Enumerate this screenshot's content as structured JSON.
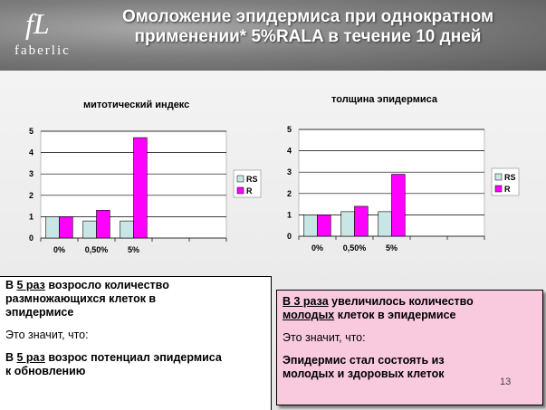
{
  "header": {
    "logo_mark": "fL",
    "logo_word": "faberlic",
    "title_line1": "Омоложение эпидермиса при однократном",
    "title_line2": "применении* 5%RALA в течение 10 дней"
  },
  "colors": {
    "rs": "#c9e6e6",
    "r": "#ff00ff",
    "pink_box": "#f9c9de"
  },
  "chart_data": [
    {
      "type": "bar",
      "title": "митотический индекс",
      "categories": [
        "0%",
        "0,50%",
        "5%",
        "",
        ""
      ],
      "series": [
        {
          "name": "RS",
          "values": [
            1,
            0.8,
            0.8,
            null,
            null
          ]
        },
        {
          "name": "R",
          "values": [
            1,
            1.3,
            4.7,
            null,
            null
          ]
        }
      ],
      "ylim": [
        0,
        5
      ],
      "yticks": [
        "0",
        "1",
        "2",
        "3",
        "4",
        "5"
      ],
      "grid": true,
      "legend": "right"
    },
    {
      "type": "bar",
      "title": "толщина эпидермиса",
      "categories": [
        "0%",
        "0,50%",
        "5%",
        "",
        ""
      ],
      "series": [
        {
          "name": "RS",
          "values": [
            1,
            1.15,
            1.15,
            null,
            null
          ]
        },
        {
          "name": "R",
          "values": [
            1,
            1.4,
            2.9,
            null,
            null
          ]
        }
      ],
      "ylim": [
        0,
        5
      ],
      "yticks": [
        "0",
        "1",
        "2",
        "3",
        "4",
        "5"
      ],
      "grid": true,
      "legend": "right"
    }
  ],
  "left_box": {
    "b1_pre": "В ",
    "b1_u": "5 раз",
    "b1_post": " возросло количество",
    "b1_l2": "размножающихся клеток в",
    "b1_l3": "эпидермисе",
    "plain": "Это значит, что:",
    "b2_pre": "В ",
    "b2_u": "5 раз",
    "b2_post": " возрос потенциал эпидермиса",
    "b2_l2": "к обновлению"
  },
  "right_box": {
    "b1_u": "В 3 раза",
    "b1_post": " увеличилось количество",
    "b2_u": "молодых",
    "b2_post": " клеток в эпидермисе",
    "plain": "Это значит, что:",
    "b3_l1": "Эпидермис стал состоять  из",
    "b3_l2": "молодых и здоровых клеток"
  },
  "page_number": "13"
}
